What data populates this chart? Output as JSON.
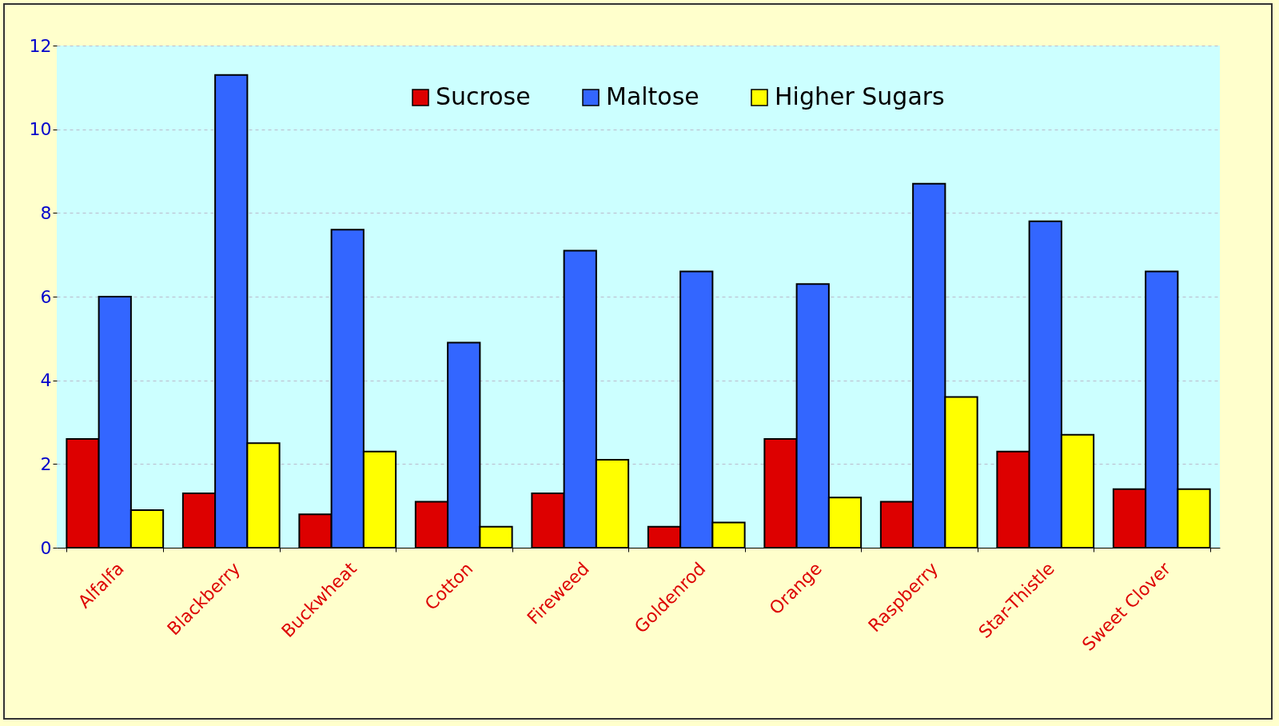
{
  "chart_data": {
    "type": "bar",
    "categories": [
      "Alfalfa",
      "Blackberry",
      "Buckwheat",
      "Cotton",
      "Fireweed",
      "Goldenrod",
      "Orange",
      "Raspberry",
      "Star-Thistle",
      "Sweet Clover"
    ],
    "series": [
      {
        "name": "Sucrose",
        "color": "#dd0000",
        "values": [
          2.6,
          1.3,
          0.8,
          1.1,
          1.3,
          0.5,
          2.6,
          1.1,
          2.3,
          1.4
        ]
      },
      {
        "name": "Maltose",
        "color": "#3366ff",
        "values": [
          6.0,
          11.3,
          7.6,
          4.9,
          7.1,
          6.6,
          6.3,
          8.7,
          7.8,
          6.6
        ]
      },
      {
        "name": "Higher Sugars",
        "color": "#ffff00",
        "values": [
          0.9,
          2.5,
          2.3,
          0.5,
          2.1,
          0.6,
          1.2,
          3.6,
          2.7,
          1.4
        ]
      }
    ],
    "ylim": [
      0,
      12
    ],
    "yticks": [
      0,
      2,
      4,
      6,
      8,
      10,
      12
    ],
    "grid": "y",
    "legend": "top"
  }
}
